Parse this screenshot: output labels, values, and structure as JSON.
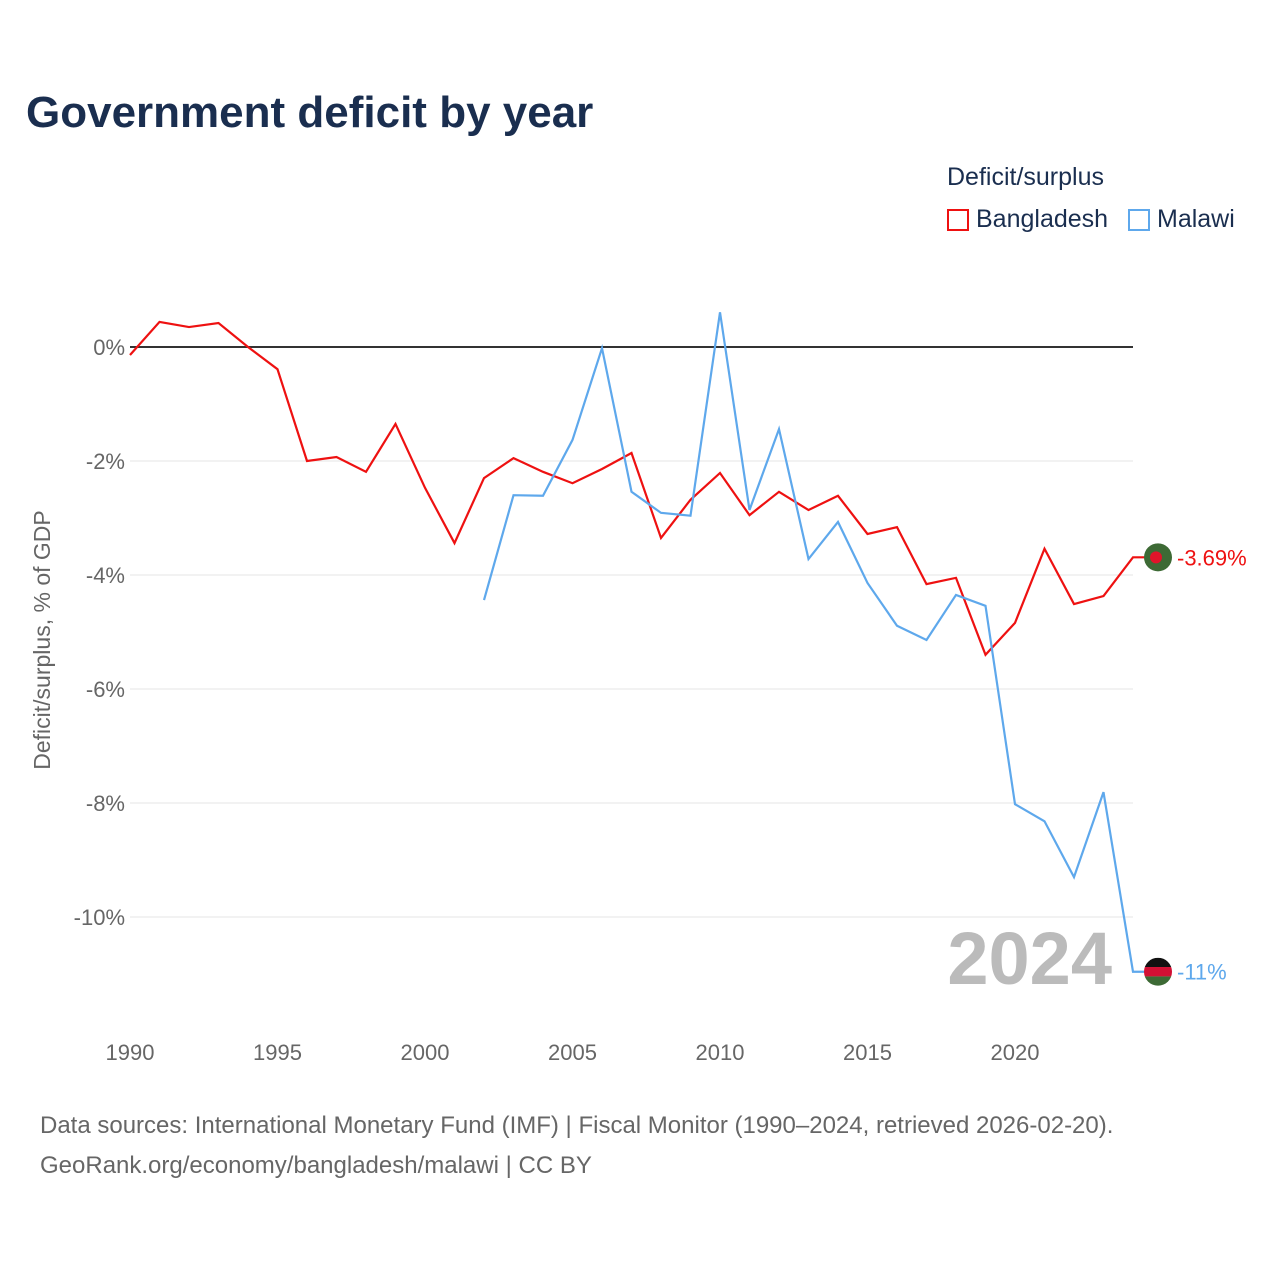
{
  "title": "Government deficit by year",
  "legend": {
    "title": "Deficit/surplus",
    "items": [
      {
        "name": "Bangladesh",
        "color": "#ee1111"
      },
      {
        "name": "Malawi",
        "color": "#5ea8ec"
      }
    ]
  },
  "source": {
    "line1": "Data sources: International Monetary Fund (IMF) | Fiscal Monitor (1990–2024, retrieved 2026-02-20).",
    "line2": "GeoRank.org/economy/bangladesh/malawi | CC BY"
  },
  "chart_data": {
    "type": "line",
    "title": "Government deficit by year",
    "ylabel": "Deficit/surplus, % of GDP",
    "xlim": [
      1990,
      2024
    ],
    "ylim": [
      -11.5,
      1
    ],
    "xticks": [
      1990,
      1995,
      2000,
      2005,
      2010,
      2015,
      2020
    ],
    "yticks": [
      {
        "v": 0,
        "label": "0%"
      },
      {
        "v": -2,
        "label": "-2%"
      },
      {
        "v": -4,
        "label": "-4%"
      },
      {
        "v": -6,
        "label": "-6%"
      },
      {
        "v": -8,
        "label": "-8%"
      },
      {
        "v": -10,
        "label": "-10%"
      }
    ],
    "year_label": "2024",
    "series": [
      {
        "name": "Bangladesh",
        "color": "#ee1111",
        "end_label": "-3.69%",
        "x": [
          1990,
          1991,
          1992,
          1993,
          1994,
          1995,
          1996,
          1997,
          1998,
          1999,
          2000,
          2001,
          2002,
          2003,
          2004,
          2005,
          2006,
          2007,
          2008,
          2009,
          2010,
          2011,
          2012,
          2013,
          2014,
          2015,
          2016,
          2017,
          2018,
          2019,
          2020,
          2021,
          2022,
          2023,
          2024
        ],
        "values": [
          -0.14,
          0.44,
          0.35,
          0.42,
          0.0,
          -0.39,
          -2.0,
          -1.93,
          -2.19,
          -1.35,
          -2.47,
          -3.44,
          -2.3,
          -1.95,
          -2.19,
          -2.39,
          -2.14,
          -1.86,
          -3.35,
          -2.68,
          -2.21,
          -2.95,
          -2.54,
          -2.86,
          -2.61,
          -3.28,
          -3.16,
          -4.16,
          -4.05,
          -5.4,
          -4.84,
          -3.54,
          -4.51,
          -4.37,
          -3.69
        ]
      },
      {
        "name": "Malawi",
        "color": "#5ea8ec",
        "end_label": "-11%",
        "x": [
          2002,
          2003,
          2004,
          2005,
          2006,
          2007,
          2008,
          2009,
          2010,
          2011,
          2012,
          2013,
          2014,
          2015,
          2016,
          2017,
          2018,
          2019,
          2020,
          2021,
          2022,
          2023,
          2024
        ],
        "values": [
          -4.44,
          -2.6,
          -2.61,
          -1.63,
          -0.02,
          -2.54,
          -2.91,
          -2.96,
          0.61,
          -2.86,
          -1.44,
          -3.72,
          -3.07,
          -4.14,
          -4.89,
          -5.14,
          -4.35,
          -4.54,
          -8.02,
          -8.32,
          -9.3,
          -7.81,
          -10.96
        ]
      }
    ]
  }
}
